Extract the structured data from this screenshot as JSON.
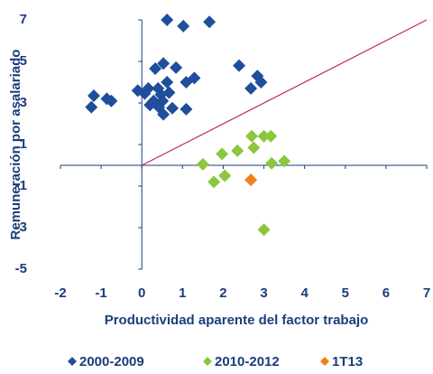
{
  "chart_data": {
    "type": "scatter",
    "x_label": "Productividad aparente del factor trabajo",
    "y_label": "Remuneración por asalariado",
    "xlim": [
      -2,
      7
    ],
    "ylim": [
      -5,
      7
    ],
    "xticks": [
      -2,
      -1,
      0,
      1,
      2,
      3,
      4,
      5,
      6,
      7
    ],
    "yticks": [
      -5,
      -3,
      -1,
      1,
      3,
      5,
      7
    ],
    "grid": false,
    "legend": "bottom",
    "reference_line": {
      "x": [
        0,
        7
      ],
      "y": [
        0,
        7
      ],
      "color": "#c0285a"
    },
    "series": [
      {
        "name": "2000-2009",
        "color": "#1f4e9c",
        "x": [
          0.62,
          1.66,
          1.02,
          0.53,
          0.33,
          0.84,
          2.39,
          2.84,
          2.93,
          2.68,
          1.29,
          1.09,
          -1.18,
          -1.24,
          -0.86,
          -0.75,
          0.16,
          0.4,
          0.62,
          0.47,
          0.29,
          0.51,
          0.67,
          0.2,
          0.42,
          0.75,
          0.53,
          1.09,
          0.07,
          -0.1
        ],
        "values": [
          7.0,
          6.9,
          6.7,
          4.9,
          4.65,
          4.7,
          4.8,
          4.3,
          4.0,
          3.7,
          4.2,
          4.0,
          3.35,
          2.8,
          3.2,
          3.1,
          3.7,
          3.7,
          4.0,
          3.4,
          3.1,
          3.1,
          3.5,
          2.9,
          2.8,
          2.75,
          2.45,
          2.7,
          3.45,
          3.6
        ]
      },
      {
        "name": "2010-2012",
        "color": "#8cc63f",
        "x": [
          1.5,
          1.97,
          1.77,
          2.04,
          2.35,
          2.7,
          3.0,
          3.17,
          2.75,
          3.19,
          3.5,
          3.0
        ],
        "values": [
          0.05,
          0.55,
          -0.8,
          -0.5,
          0.7,
          1.4,
          1.4,
          1.4,
          0.85,
          0.1,
          0.2,
          -3.1
        ]
      },
      {
        "name": "1T13",
        "color": "#f07f1d",
        "x": [
          2.68
        ],
        "values": [
          -0.7
        ]
      }
    ]
  }
}
